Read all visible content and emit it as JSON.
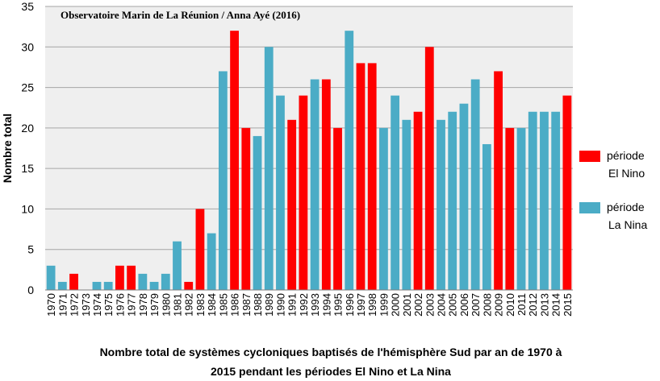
{
  "chart_data": {
    "type": "bar",
    "annotation": "Observatoire Marin de La Réunion / Anna Ayé (2016)",
    "title_line1": "Nombre total de systèmes cycloniques baptisés de l'hémisphère Sud par an de 1970 à",
    "title_line2": "2015 pendant les périodes El Nino et La Nina",
    "ylabel": "Nombre total",
    "xlabel": "",
    "ylim": [
      0,
      35
    ],
    "yticks": [
      "0",
      "5",
      "10",
      "15",
      "20",
      "25",
      "30",
      "35"
    ],
    "grid": true,
    "legend_position": "right",
    "colors": {
      "el_nino": "#ff0000",
      "la_nina": "#4bacc6",
      "plot_bg": "#efefef",
      "grid": "#a6a6a6"
    },
    "legend": [
      {
        "key": "el_nino",
        "line1": "période",
        "line2": "El Nino"
      },
      {
        "key": "la_nina",
        "line1": "période",
        "line2": "La Nina"
      }
    ],
    "categories": [
      "1970",
      "1971",
      "1972",
      "1973",
      "1974",
      "1975",
      "1976",
      "1977",
      "1978",
      "1979",
      "1980",
      "1981",
      "1982",
      "1983",
      "1984",
      "1985",
      "1986",
      "1987",
      "1988",
      "1989",
      "1990",
      "1991",
      "1992",
      "1993",
      "1994",
      "1995",
      "1996",
      "1997",
      "1998",
      "1999",
      "2000",
      "2001",
      "2002",
      "2003",
      "2004",
      "2005",
      "2006",
      "2007",
      "2008",
      "2009",
      "2010",
      "2011",
      "2012",
      "2013",
      "2014",
      "2015"
    ],
    "values": [
      3,
      1,
      2,
      0,
      1,
      1,
      3,
      3,
      2,
      1,
      2,
      6,
      1,
      10,
      7,
      27,
      32,
      20,
      19,
      30,
      24,
      21,
      24,
      26,
      26,
      20,
      32,
      28,
      28,
      20,
      24,
      21,
      22,
      30,
      21,
      22,
      23,
      26,
      18,
      27,
      20,
      20,
      22,
      22,
      22,
      24
    ],
    "period": [
      "la_nina",
      "la_nina",
      "el_nino",
      "none",
      "la_nina",
      "la_nina",
      "el_nino",
      "el_nino",
      "la_nina",
      "la_nina",
      "la_nina",
      "la_nina",
      "el_nino",
      "el_nino",
      "la_nina",
      "la_nina",
      "el_nino",
      "el_nino",
      "la_nina",
      "la_nina",
      "la_nina",
      "el_nino",
      "el_nino",
      "la_nina",
      "el_nino",
      "el_nino",
      "la_nina",
      "el_nino",
      "el_nino",
      "la_nina",
      "la_nina",
      "la_nina",
      "el_nino",
      "el_nino",
      "la_nina",
      "la_nina",
      "la_nina",
      "la_nina",
      "la_nina",
      "el_nino",
      "el_nino",
      "la_nina",
      "la_nina",
      "la_nina",
      "la_nina",
      "el_nino"
    ]
  }
}
